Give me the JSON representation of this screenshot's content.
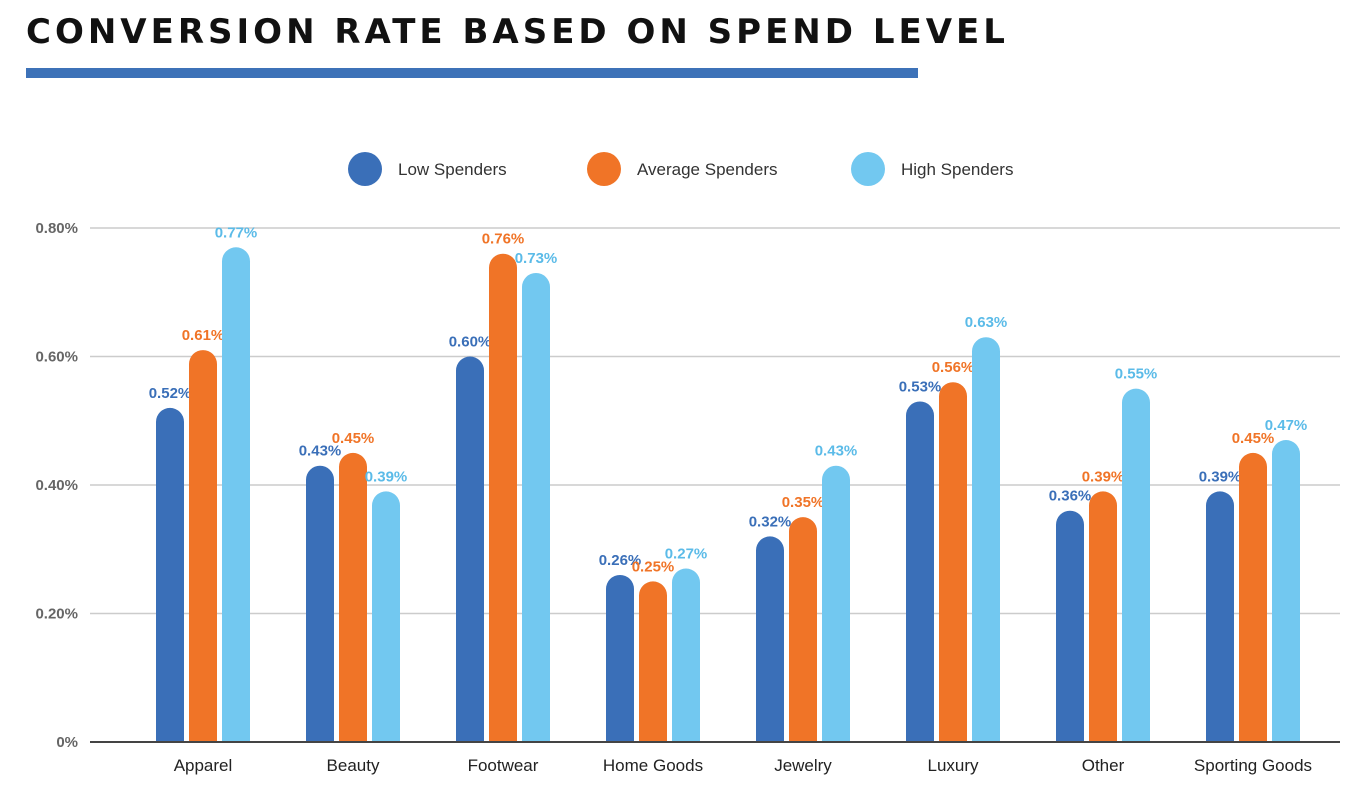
{
  "title": "CONVERSION RATE BASED ON SPEND LEVEL",
  "colors": {
    "title_rule": "#3d72b8",
    "grid": "#cccccc",
    "baseline": "#444444"
  },
  "chart_data": {
    "type": "bar",
    "categories": [
      "Apparel",
      "Beauty",
      "Footwear",
      "Home Goods",
      "Jewelry",
      "Luxury",
      "Other",
      "Sporting Goods"
    ],
    "series": [
      {
        "name": "Low Spenders",
        "color": "#3a6fb8",
        "label_color": "#3a6fb8",
        "values": [
          0.52,
          0.43,
          0.6,
          0.26,
          0.32,
          0.53,
          0.36,
          0.39
        ]
      },
      {
        "name": "Average Spenders",
        "color": "#f07427",
        "label_color": "#f07427",
        "values": [
          0.61,
          0.45,
          0.76,
          0.25,
          0.35,
          0.56,
          0.39,
          0.45
        ]
      },
      {
        "name": "High Spenders",
        "color": "#72c8f0",
        "label_color": "#5bbbe8",
        "values": [
          0.77,
          0.39,
          0.73,
          0.27,
          0.43,
          0.63,
          0.55,
          0.47
        ]
      }
    ],
    "data_labels": [
      [
        "0.52%",
        "0.43%",
        "0.60%",
        "0.26%",
        "0.32%",
        "0.53%",
        "0.36%",
        "0.39%"
      ],
      [
        "0.61%",
        "0.45%",
        "0.76%",
        "0.25%",
        "0.35%",
        "0.56%",
        "0.39%",
        "0.45%"
      ],
      [
        "0.77%",
        "0.39%",
        "0.73%",
        "0.27%",
        "0.43%",
        "0.63%",
        "0.55%",
        "0.47%"
      ]
    ],
    "yticks": [
      0,
      0.2,
      0.4,
      0.6,
      0.8
    ],
    "ytick_labels": [
      "0%",
      "0.20%",
      "0.40%",
      "0.60%",
      "0.80%"
    ],
    "ylim": [
      0,
      0.8
    ],
    "unit": "%",
    "grid": true,
    "legend_position": "top-center"
  }
}
